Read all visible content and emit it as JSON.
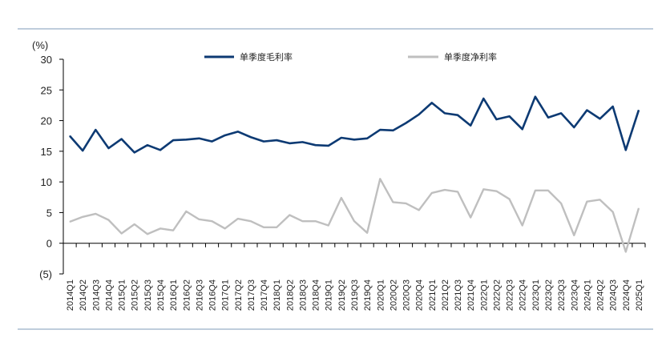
{
  "chart_data": {
    "type": "line",
    "y_unit_label": "(%)",
    "ylim": [
      -5,
      30
    ],
    "yticks": [
      {
        "value": 30,
        "label": "30"
      },
      {
        "value": 25,
        "label": "25"
      },
      {
        "value": 20,
        "label": "20"
      },
      {
        "value": 15,
        "label": "15"
      },
      {
        "value": 10,
        "label": "10"
      },
      {
        "value": 5,
        "label": "5"
      },
      {
        "value": 0,
        "label": "0"
      },
      {
        "value": -5,
        "label": "(5)"
      }
    ],
    "grid": false,
    "legend_position": "top",
    "categories": [
      "2014Q1",
      "2014Q2",
      "2014Q3",
      "2014Q4",
      "2015Q1",
      "2015Q2",
      "2015Q3",
      "2015Q4",
      "2016Q1",
      "2016Q2",
      "2016Q3",
      "2016Q4",
      "2017Q1",
      "2017Q2",
      "2017Q3",
      "2017Q4",
      "2018Q1",
      "2018Q2",
      "2018Q3",
      "2018Q4",
      "2019Q1",
      "2019Q2",
      "2019Q3",
      "2019Q4",
      "2020Q1",
      "2020Q2",
      "2020Q3",
      "2020Q4",
      "2021Q1",
      "2021Q2",
      "2021Q3",
      "2021Q4",
      "2022Q1",
      "2022Q2",
      "2022Q3",
      "2022Q4",
      "2023Q1",
      "2023Q2",
      "2023Q3",
      "2023Q4",
      "2024Q1",
      "2024Q2",
      "2024Q3",
      "2024Q4",
      "2025Q1"
    ],
    "series": [
      {
        "name": "单季度毛利率",
        "color": "#0d3a73",
        "values": [
          17.5,
          15.1,
          18.5,
          15.5,
          17.0,
          14.8,
          16.0,
          15.2,
          16.8,
          16.9,
          17.1,
          16.6,
          17.6,
          18.2,
          17.3,
          16.6,
          16.8,
          16.3,
          16.5,
          16.0,
          15.9,
          17.2,
          16.9,
          17.1,
          18.5,
          18.4,
          19.6,
          21.0,
          22.9,
          21.2,
          20.9,
          19.2,
          23.6,
          20.2,
          20.7,
          18.6,
          23.9,
          20.5,
          21.2,
          18.9,
          21.7,
          20.3,
          22.3,
          15.2,
          21.7
        ]
      },
      {
        "name": "单季度净利率",
        "color": "#bfbfbf",
        "values": [
          3.5,
          4.3,
          4.8,
          3.8,
          1.6,
          3.1,
          1.5,
          2.4,
          2.1,
          5.2,
          3.9,
          3.6,
          2.4,
          4.0,
          3.6,
          2.6,
          2.6,
          4.6,
          3.6,
          3.6,
          2.9,
          7.4,
          3.6,
          1.7,
          10.5,
          6.7,
          6.5,
          5.4,
          8.2,
          8.7,
          8.4,
          4.2,
          8.8,
          8.5,
          7.2,
          2.9,
          8.6,
          8.6,
          6.5,
          1.3,
          6.8,
          7.1,
          5.1,
          -1.4,
          5.7
        ]
      }
    ]
  }
}
